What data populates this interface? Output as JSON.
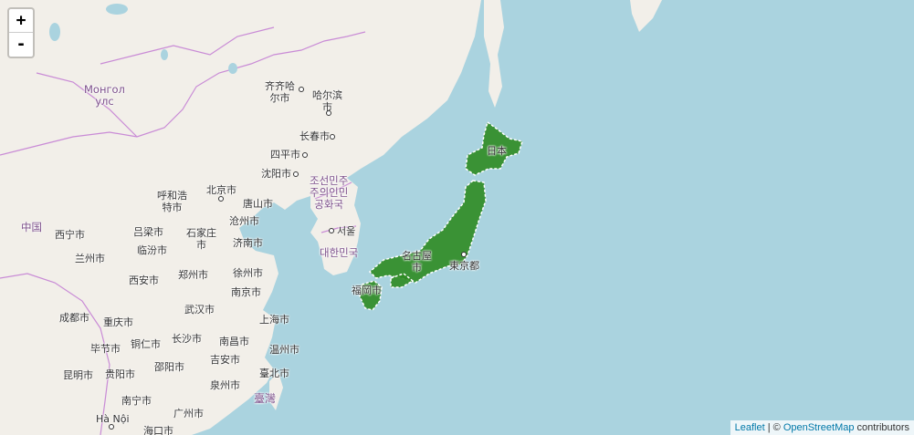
{
  "zoom": {
    "in_label": "+",
    "out_label": "-"
  },
  "attribution": {
    "leaflet": "Leaflet",
    "separator": " | © ",
    "osm": "OpenStreetMap",
    "suffix": " contributors"
  },
  "colors": {
    "water": "#aad3df",
    "land": "#f2efe9",
    "japan_fill": "#2e8b22",
    "border": "#c98bd6",
    "label": "#333333",
    "country_label": "#7c4f8a"
  },
  "labels": {
    "mongolia": "Монгол\nулс",
    "china": "中国",
    "north_korea": "조선민주\n주의인민\n공화국",
    "south_korea": "대한민국",
    "japan": "日本",
    "taiwan": "臺灣",
    "qiqihar": "齐齐哈\n尔市",
    "harbin": "哈尔滨\n市",
    "changchun": "长春市",
    "siping": "四平市",
    "shenyang": "沈阳市",
    "hohhot": "呼和浩\n特市",
    "beijing": "北京市",
    "tangshan": "唐山市",
    "seoul": "서울",
    "xining": "西宁市",
    "lvliang": "吕梁市",
    "shijiazhuang": "石家庄\n市",
    "cangzhou": "沧州市",
    "linfen": "临汾市",
    "jinan": "济南市",
    "lanzhou": "兰州市",
    "xian": "西安市",
    "zhengzhou": "郑州市",
    "xuzhou": "徐州市",
    "nanjing": "南京市",
    "chengdu": "成都市",
    "chongqing": "重庆市",
    "wuhan": "武汉市",
    "shanghai": "上海市",
    "bijie": "毕节市",
    "tongren": "铜仁市",
    "changsha": "长沙市",
    "nanchang": "南昌市",
    "wenzhou": "温州市",
    "shaoyang": "邵阳市",
    "jian": "吉安市",
    "kunming": "昆明市",
    "guiyang": "贵阳市",
    "taipei": "臺北市",
    "quanzhou": "泉州市",
    "nanning": "南宁市",
    "guangzhou": "广州市",
    "hanoi": "Hà Nội",
    "haikou": "海口市",
    "nagoya": "名古屋\n市",
    "tokyo": "東京都",
    "fukuoka": "福岡市"
  }
}
